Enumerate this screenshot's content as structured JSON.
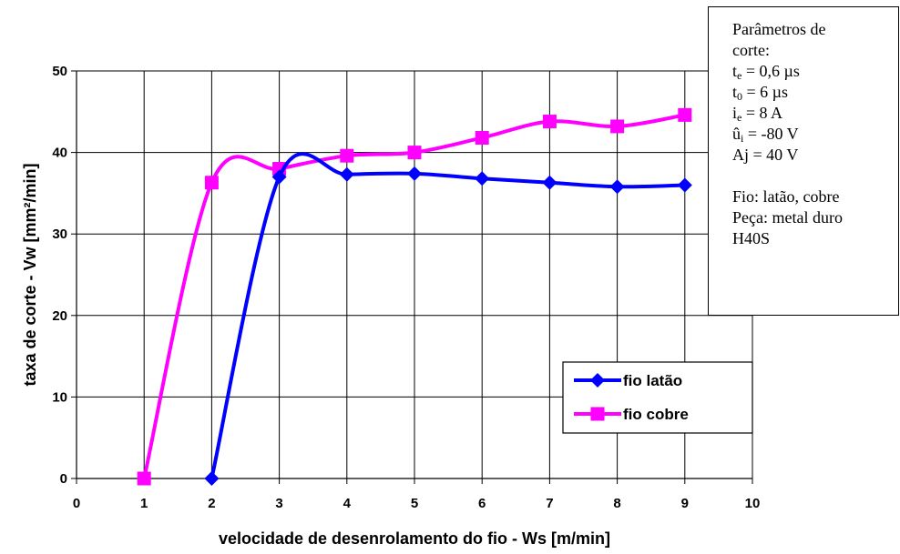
{
  "chart_data": {
    "type": "line",
    "xlabel": "velocidade de desenrolamento do fio - Ws [m/min]",
    "ylabel": "taxa de corte - Vw [mm²/min]",
    "xlim": [
      0,
      10
    ],
    "ylim": [
      0,
      50
    ],
    "x_ticks": [
      "0",
      "1",
      "2",
      "3",
      "4",
      "5",
      "6",
      "7",
      "8",
      "9",
      "10"
    ],
    "y_ticks": [
      "0",
      "10",
      "20",
      "30",
      "40",
      "50"
    ],
    "grid": "horizontal and vertical",
    "legend_position": "lower-right",
    "series": [
      {
        "name": "fio latão",
        "color": "#0000ff",
        "marker": "diamond",
        "x": [
          2,
          3,
          4,
          5,
          6,
          7,
          8,
          9
        ],
        "values": [
          0,
          37,
          37.3,
          37.4,
          36.8,
          36.3,
          35.8,
          36
        ]
      },
      {
        "name": "fio cobre",
        "color": "#ff00ff",
        "marker": "square",
        "x": [
          1,
          2,
          3,
          4,
          5,
          6,
          7,
          8,
          9
        ],
        "values": [
          0,
          36.3,
          38,
          39.6,
          40,
          41.8,
          43.8,
          43.2,
          44.6
        ]
      }
    ]
  },
  "parameters": {
    "heading_line1": "Parâmetros  de",
    "heading_line2": "corte:",
    "te_sym": "t",
    "te_sub": "e",
    "te_val": " = 0,6 µs",
    "t0_sym": "t",
    "t0_sub": "0",
    "t0_val": " = 6 µs",
    "ie_sym": "i",
    "ie_sub": "e",
    "ie_val": " = 8 A",
    "ui_sym": "û",
    "ui_sub": "i",
    "ui_val": " = -80 V",
    "aj": "Aj = 40 V",
    "fio": "Fio: latão, cobre",
    "peca_line1": "Peça: metal duro",
    "peca_line2": "H40S"
  }
}
